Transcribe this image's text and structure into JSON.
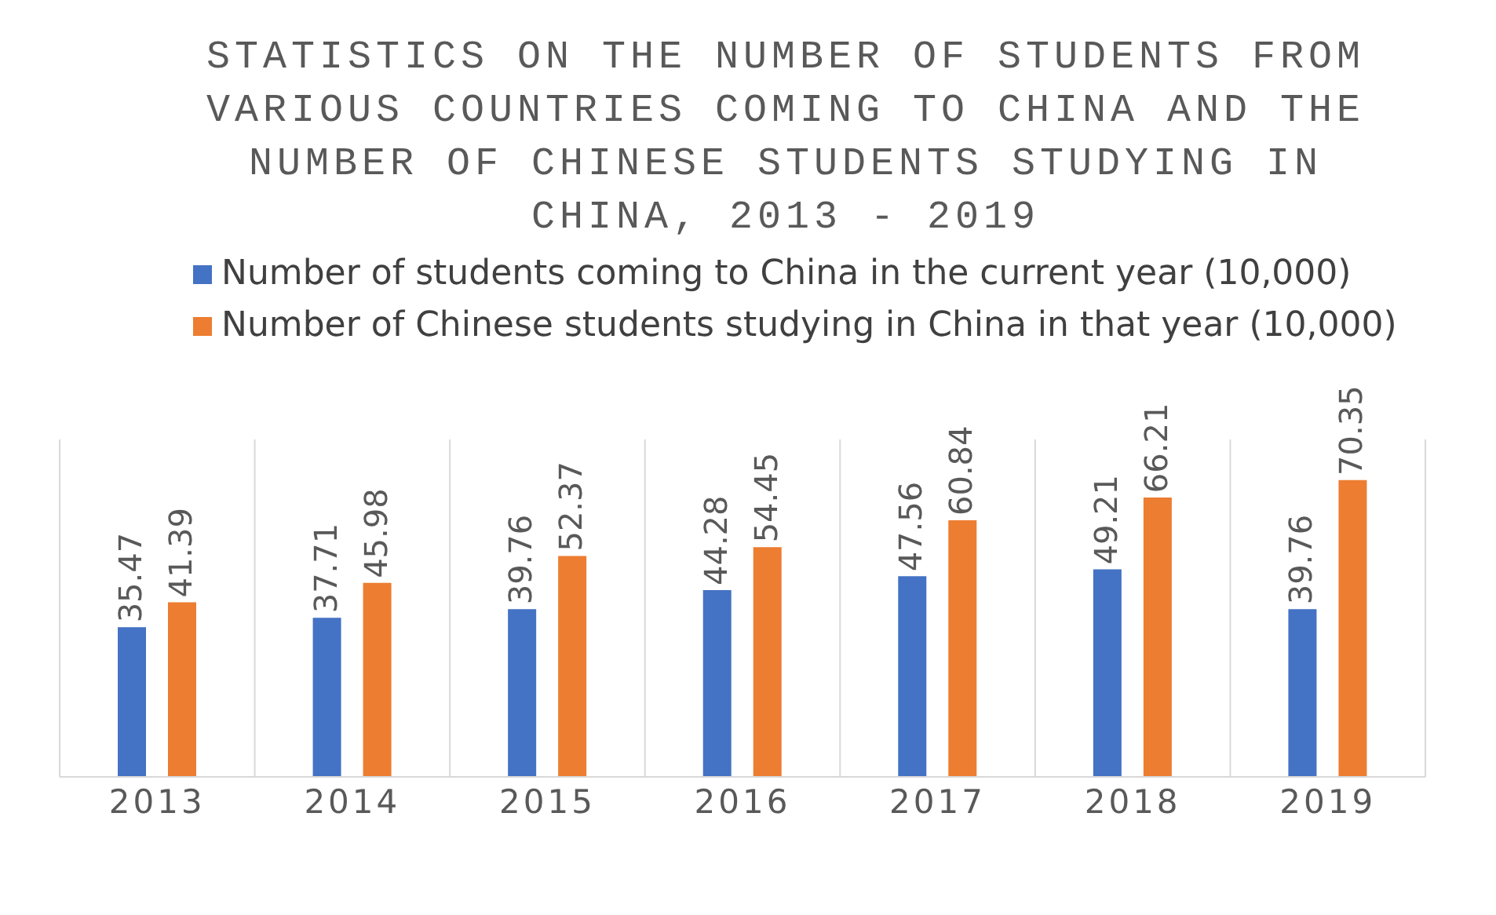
{
  "chart_data": {
    "type": "bar",
    "title": "STATISTICS ON THE NUMBER OF STUDENTS FROM VARIOUS COUNTRIES COMING TO CHINA AND THE NUMBER OF CHINESE STUDENTS STUDYING IN CHINA, 2013 - 2019",
    "categories": [
      "2013",
      "2014",
      "2015",
      "2016",
      "2017",
      "2018",
      "2019"
    ],
    "series": [
      {
        "name": "Number of students coming to China in the current year (10,000)",
        "color": "#4472c4",
        "values": [
          35.47,
          37.71,
          39.76,
          44.28,
          47.56,
          49.21,
          39.76
        ]
      },
      {
        "name": "Number of Chinese students studying in China in that year (10,000)",
        "color": "#ed7d31",
        "values": [
          41.39,
          45.98,
          52.37,
          54.45,
          60.84,
          66.21,
          70.35
        ]
      }
    ],
    "data_labels": true,
    "grid": "x",
    "legend": "top"
  }
}
